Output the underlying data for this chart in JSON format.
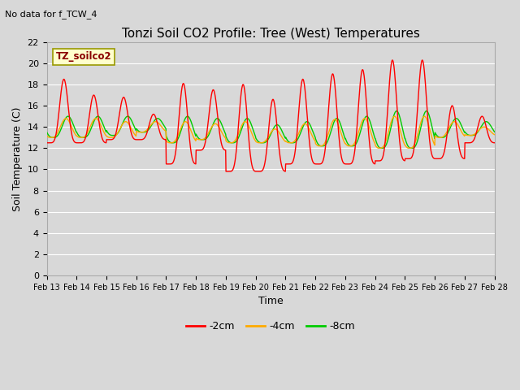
{
  "title": "Tonzi Soil CO2 Profile: Tree (West) Temperatures",
  "subtitle": "No data for f_TCW_4",
  "xlabel": "Time",
  "ylabel": "Soil Temperature (C)",
  "ylim": [
    0,
    22
  ],
  "yticks": [
    0,
    2,
    4,
    6,
    8,
    10,
    12,
    14,
    16,
    18,
    20,
    22
  ],
  "legend_label": "TZ_soilco2",
  "series_labels": [
    "-2cm",
    "-4cm",
    "-8cm"
  ],
  "series_colors": [
    "#ff0000",
    "#ffaa00",
    "#00cc00"
  ],
  "bg_color": "#d8d8d8",
  "plot_bg_color": "#d8d8d8",
  "grid_color": "#ffffff",
  "n_days": 15,
  "pts_per_day": 96,
  "xtick_labels": [
    "Feb 13",
    "Feb 14",
    "Feb 15",
    "Feb 16",
    "Feb 17",
    "Feb 18",
    "Feb 19",
    "Feb 20",
    "Feb 21",
    "Feb 22",
    "Feb 23",
    "Feb 24",
    "Feb 25",
    "Feb 26",
    "Feb 27",
    "Feb 28"
  ],
  "daily_min_2cm": [
    12.5,
    12.5,
    12.8,
    12.8,
    10.5,
    11.8,
    9.8,
    9.8,
    10.5,
    10.5,
    10.5,
    10.8,
    11.0,
    11.0,
    12.5
  ],
  "daily_max_2cm": [
    18.5,
    17.0,
    16.8,
    15.2,
    18.1,
    17.5,
    18.0,
    16.6,
    18.5,
    19.0,
    19.4,
    20.3,
    20.3,
    16.0,
    15.0
  ],
  "daily_min_4cm": [
    13.0,
    13.0,
    13.0,
    13.5,
    12.5,
    12.8,
    12.5,
    12.5,
    12.5,
    12.2,
    12.2,
    12.0,
    12.0,
    13.0,
    13.2
  ],
  "daily_max_4cm": [
    14.8,
    14.8,
    14.5,
    14.5,
    14.5,
    14.3,
    14.5,
    13.8,
    14.3,
    14.7,
    14.8,
    15.0,
    15.0,
    14.5,
    14.0
  ],
  "daily_min_8cm": [
    13.0,
    13.0,
    13.2,
    13.5,
    12.5,
    12.8,
    12.5,
    12.5,
    12.5,
    12.2,
    12.2,
    12.0,
    12.0,
    13.0,
    13.2
  ],
  "daily_max_8cm": [
    15.0,
    15.0,
    15.0,
    14.8,
    15.0,
    14.8,
    14.8,
    14.2,
    14.5,
    14.8,
    15.0,
    15.5,
    15.5,
    14.8,
    14.5
  ],
  "title_fontsize": 11,
  "axis_fontsize": 9,
  "tick_fontsize": 8,
  "legend_fontsize": 9
}
